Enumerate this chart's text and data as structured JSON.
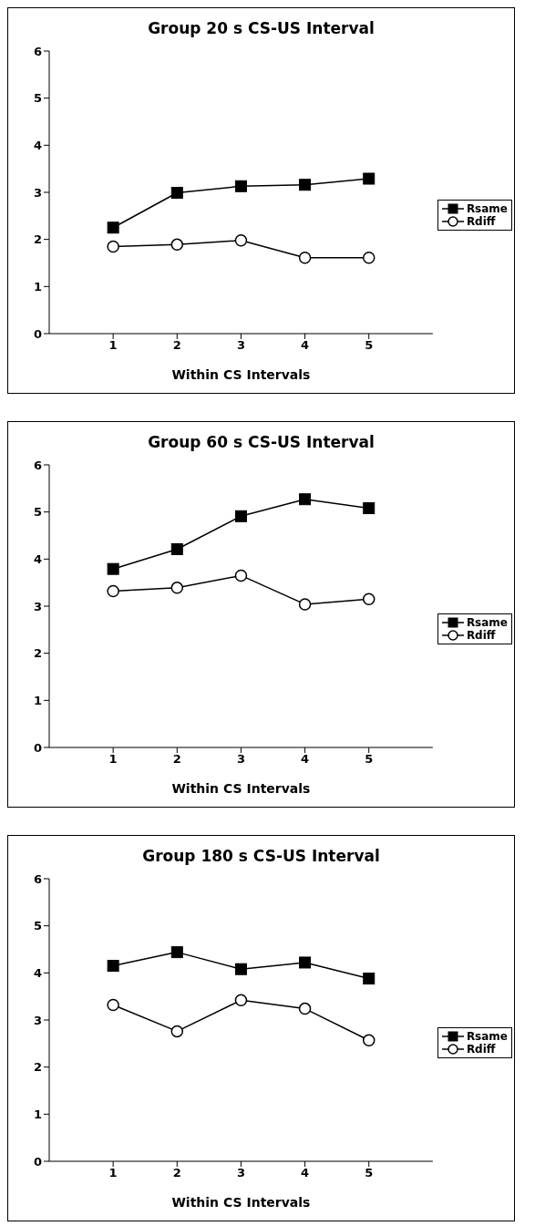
{
  "chart_data": [
    {
      "type": "line",
      "title": "Group 20 s CS-US Interval",
      "xlabel": "Within CS Intervals",
      "x": [
        1,
        2,
        3,
        4,
        5
      ],
      "xlim": [
        0,
        6
      ],
      "xticks": [
        1,
        2,
        3,
        4,
        5
      ],
      "ylim": [
        0,
        6
      ],
      "yticks": [
        0,
        1,
        2,
        3,
        4,
        5,
        6
      ],
      "grid": false,
      "legend": "right",
      "series": [
        {
          "name": "Rsame",
          "color": "#000000",
          "marker": "square",
          "values": [
            2.25,
            2.99,
            3.13,
            3.16,
            3.29
          ]
        },
        {
          "name": "Rdiff",
          "color": "#000000",
          "marker": "circle",
          "values": [
            1.85,
            1.89,
            1.98,
            1.61,
            1.61
          ]
        }
      ]
    },
    {
      "type": "line",
      "title": "Group 60 s CS-US Interval",
      "xlabel": "Within CS Intervals",
      "x": [
        1,
        2,
        3,
        4,
        5
      ],
      "xlim": [
        0,
        6
      ],
      "xticks": [
        1,
        2,
        3,
        4,
        5
      ],
      "ylim": [
        0,
        6
      ],
      "yticks": [
        0,
        1,
        2,
        3,
        4,
        5,
        6
      ],
      "grid": false,
      "legend": "right",
      "series": [
        {
          "name": "Rsame",
          "color": "#000000",
          "marker": "square",
          "values": [
            3.79,
            4.21,
            4.91,
            5.27,
            5.08
          ]
        },
        {
          "name": "Rdiff",
          "color": "#000000",
          "marker": "circle",
          "values": [
            3.32,
            3.39,
            3.65,
            3.04,
            3.15
          ]
        }
      ]
    },
    {
      "type": "line",
      "title": "Group 180 s CS-US Interval",
      "xlabel": "Within CS Intervals",
      "x": [
        1,
        2,
        3,
        4,
        5
      ],
      "xlim": [
        0,
        6
      ],
      "xticks": [
        1,
        2,
        3,
        4,
        5
      ],
      "ylim": [
        0,
        6
      ],
      "yticks": [
        0,
        1,
        2,
        3,
        4,
        5,
        6
      ],
      "grid": false,
      "legend": "right",
      "series": [
        {
          "name": "Rsame",
          "color": "#000000",
          "marker": "square",
          "values": [
            4.15,
            4.44,
            4.08,
            4.22,
            3.88
          ]
        },
        {
          "name": "Rdiff",
          "color": "#000000",
          "marker": "circle",
          "values": [
            3.32,
            2.76,
            3.42,
            3.24,
            2.57
          ]
        }
      ]
    }
  ]
}
